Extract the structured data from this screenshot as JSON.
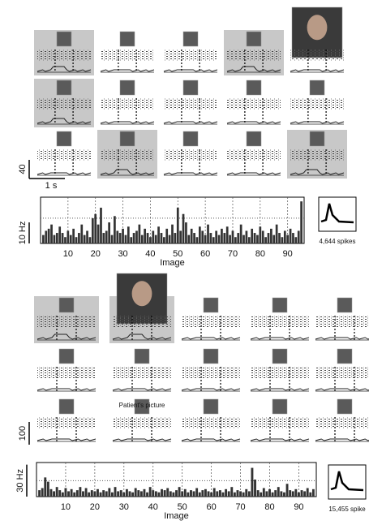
{
  "chart_data": [
    {
      "type": "bar",
      "xlabel": "Image",
      "color": "#333333",
      "grid": true,
      "x": [
        1,
        2,
        3,
        4,
        5,
        6,
        7,
        8,
        9,
        10,
        11,
        12,
        13,
        14,
        15,
        16,
        17,
        18,
        19,
        20,
        21,
        22,
        23,
        24,
        25,
        26,
        27,
        28,
        29,
        30,
        31,
        32,
        33,
        34,
        35,
        36,
        37,
        38,
        39,
        40,
        41,
        42,
        43,
        44,
        45,
        46,
        47,
        48,
        49,
        50,
        51,
        52,
        53,
        54,
        55,
        56,
        57,
        58,
        59,
        60,
        61,
        62,
        63,
        64,
        65,
        66,
        67,
        68,
        69,
        70,
        71,
        72,
        73,
        74,
        75,
        76,
        77,
        78,
        79,
        80,
        81,
        82,
        83,
        84,
        85,
        86,
        87,
        88,
        89,
        90,
        91,
        92,
        93,
        94,
        95
      ],
      "values": [
        4,
        6,
        7,
        9,
        4,
        5,
        8,
        5,
        3,
        6,
        4,
        7,
        3,
        5,
        9,
        4,
        6,
        3,
        12,
        14,
        9,
        17,
        5,
        6,
        10,
        4,
        13,
        6,
        5,
        7,
        4,
        8,
        3,
        5,
        6,
        9,
        4,
        7,
        5,
        3,
        6,
        4,
        8,
        5,
        3,
        7,
        4,
        9,
        5,
        17,
        6,
        14,
        10,
        4,
        7,
        5,
        3,
        8,
        6,
        4,
        9,
        5,
        3,
        6,
        4,
        7,
        5,
        8,
        4,
        6,
        3,
        5,
        9,
        4,
        6,
        3,
        7,
        5,
        4,
        8,
        6,
        3,
        5,
        7,
        4,
        9,
        5,
        3,
        6,
        4,
        7,
        5,
        3,
        6,
        20
      ],
      "xlim": [
        0,
        96
      ],
      "xticks": [
        10,
        20,
        30,
        40,
        50,
        60,
        70,
        80,
        90
      ],
      "ylim": [
        0,
        22
      ],
      "reference_line": 12,
      "scale_bar": {
        "value": 10,
        "label": "10 Hz"
      },
      "raster_scale": "40",
      "time_scale": "1 s",
      "waveform_label": "4,644 spikes"
    },
    {
      "type": "bar",
      "xlabel": "Image",
      "color": "#333333",
      "grid": true,
      "x": [
        1,
        2,
        3,
        4,
        5,
        6,
        7,
        8,
        9,
        10,
        11,
        12,
        13,
        14,
        15,
        16,
        17,
        18,
        19,
        20,
        21,
        22,
        23,
        24,
        25,
        26,
        27,
        28,
        29,
        30,
        31,
        32,
        33,
        34,
        35,
        36,
        37,
        38,
        39,
        40,
        41,
        42,
        43,
        44,
        45,
        46,
        47,
        48,
        49,
        50,
        51,
        52,
        53,
        54,
        55,
        56,
        57,
        58,
        59,
        60,
        61,
        62,
        63,
        64,
        65,
        66,
        67,
        68,
        69,
        70,
        71,
        72,
        73,
        74,
        75,
        76,
        77,
        78,
        79,
        80,
        81,
        82,
        83,
        84,
        85,
        86,
        87,
        88,
        89,
        90,
        91,
        92,
        93,
        94,
        95
      ],
      "values": [
        6,
        8,
        18,
        14,
        7,
        5,
        9,
        6,
        4,
        8,
        5,
        7,
        4,
        6,
        9,
        5,
        8,
        4,
        6,
        5,
        7,
        4,
        6,
        5,
        8,
        4,
        9,
        5,
        6,
        4,
        7,
        5,
        4,
        8,
        6,
        5,
        7,
        4,
        9,
        6,
        5,
        4,
        7,
        6,
        8,
        5,
        4,
        6,
        9,
        5,
        7,
        4,
        6,
        5,
        8,
        4,
        6,
        7,
        5,
        4,
        8,
        5,
        6,
        4,
        7,
        5,
        9,
        4,
        6,
        5,
        4,
        7,
        5,
        27,
        16,
        6,
        4,
        8,
        5,
        7,
        4,
        6,
        9,
        5,
        4,
        12,
        6,
        5,
        7,
        4,
        6,
        5,
        8,
        4,
        7
      ],
      "xlim": [
        0,
        96
      ],
      "xticks": [
        10,
        20,
        30,
        40,
        50,
        60,
        70,
        80,
        90
      ],
      "ylim": [
        0,
        32
      ],
      "reference_line": 15,
      "scale_bar": {
        "value": 30,
        "label": "30 Hz"
      },
      "raster_scale": "100",
      "waveform_label": "15,455 spike",
      "panel_note": "Patient's picture"
    }
  ]
}
